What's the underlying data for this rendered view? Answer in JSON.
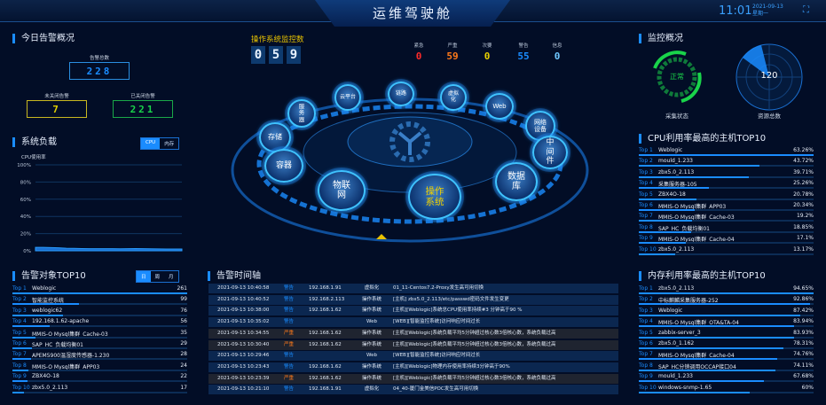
{
  "header": {
    "title": "运维驾驶舱",
    "time": "11:01",
    "date": "2021-09-13",
    "weekday": "星期一",
    "fullscreen_icon": "fullscreen-icon"
  },
  "today_alarm": {
    "title": "今日告警概况",
    "total_label": "告警总数",
    "total": "228",
    "open_label": "未关闭告警",
    "open": "7",
    "closed_label": "已关闭告警",
    "closed": "221",
    "colors": {
      "total": "#1a8cff",
      "open": "#e0d000",
      "closed": "#19d34a"
    }
  },
  "system_load": {
    "title": "系统负载",
    "tabs": [
      "CPU",
      "内存"
    ],
    "active_tab": "CPU",
    "ylabel": "CPU使用率",
    "yticks": [
      "100%",
      "80%",
      "60%",
      "40%",
      "20%",
      "0%"
    ]
  },
  "chart_data": {
    "type": "area",
    "ylabel": "CPU使用率",
    "ylim": [
      0,
      100
    ],
    "grid": true,
    "values": [
      4,
      4,
      3.8,
      3.5,
      3,
      2.8,
      2.6,
      2.5,
      2.5,
      2.4,
      2.4,
      2.3,
      2.5,
      2.6,
      2.4,
      2.3,
      2.2,
      2.1,
      2,
      2
    ]
  },
  "alarm_top": {
    "title": "告警对象TOP10",
    "tabs": [
      "日",
      "周",
      "月"
    ],
    "active_tab": "日",
    "items": [
      {
        "rank": "Top 1",
        "name": "Weblogic",
        "value": "261"
      },
      {
        "rank": "Top 2",
        "name": "智能监控系统",
        "value": "99"
      },
      {
        "rank": "Top 3",
        "name": "weblogic62",
        "value": "76"
      },
      {
        "rank": "Top 4",
        "name": "192.168.1.62-apache",
        "value": "56"
      },
      {
        "rank": "Top 5",
        "name": "MMIS-O Mysql集群_Cache-03",
        "value": "35"
      },
      {
        "rank": "Top 6",
        "name": "SAP_HC_负载均衡01",
        "value": "29"
      },
      {
        "rank": "Top 7",
        "name": "APEM5900温湿度传感器-1.230",
        "value": "28"
      },
      {
        "rank": "Top 8",
        "name": "MMIS-O Mysql集群_APP03",
        "value": "24"
      },
      {
        "rank": "Top 9",
        "name": "ZBX4O-18",
        "value": "22"
      },
      {
        "rank": "Top 10",
        "name": "zbx5.0_2.113",
        "value": "17"
      }
    ]
  },
  "os_monitor": {
    "title": "操作系统监控数",
    "digits": [
      "0",
      "5",
      "9"
    ],
    "severity": [
      {
        "label": "紧急",
        "value": "0",
        "color": "#ff2a2a"
      },
      {
        "label": "严重",
        "value": "59",
        "color": "#ff7a1a"
      },
      {
        "label": "次要",
        "value": "0",
        "color": "#e8d000"
      },
      {
        "label": "警告",
        "value": "55",
        "color": "#1a8cff"
      },
      {
        "label": "信息",
        "value": "0",
        "color": "#6ec6ff"
      }
    ]
  },
  "hub": {
    "active": "操作系统",
    "nodes": [
      "云平台",
      "链路",
      "虚拟化",
      "Web",
      "服务器",
      "网络设备",
      "存储",
      "中间件",
      "容器",
      "数据库",
      "物联网",
      "操作系统"
    ]
  },
  "timeline": {
    "title": "告警时间轴",
    "rows": [
      {
        "time": "2021-09-13 10:40:58",
        "level": "警告",
        "ip": "192.168.1.91",
        "type": "虚拟化",
        "msg": "01_11-Centos7.2-Proxy发生高可用切换"
      },
      {
        "time": "2021-09-13 10:40:52",
        "level": "警告",
        "ip": "192.168.2.113",
        "type": "操作系统",
        "msg": "[主机] zbx5.0_2.113/etc/passwd密码文件发生变更"
      },
      {
        "time": "2021-09-13 10:38:00",
        "level": "警告",
        "ip": "192.168.1.62",
        "type": "操作系统",
        "msg": "[主机][Weblogic]系统总CPU使用率持续#3 分钟高于90 %"
      },
      {
        "time": "2021-09-13 10:35:02",
        "level": "警告",
        "ip": "",
        "type": "Web",
        "msg": "[WEB][智能监控系统]访问响应时间过长"
      },
      {
        "time": "2021-09-13 10:34:55",
        "level": "严重",
        "ip": "192.168.1.62",
        "type": "操作系统",
        "msg": "[主机][Weblogic]系统负载平均5分钟超过核心数3倍核心数，系统负载过高"
      },
      {
        "time": "2021-09-13 10:30:40",
        "level": "严重",
        "ip": "192.168.1.62",
        "type": "操作系统",
        "msg": "[主机][Weblogic]系统负载平均5分钟超过核心数3倍核心数，系统负载过高"
      },
      {
        "time": "2021-09-13 10:29:46",
        "level": "警告",
        "ip": "",
        "type": "Web",
        "msg": "[WEB][智能监控系统]访问响应时间过长"
      },
      {
        "time": "2021-09-13 10:23:43",
        "level": "警告",
        "ip": "192.168.1.62",
        "type": "操作系统",
        "msg": "[主机][Weblogic]物理内存使用率持续3分钟高于90%"
      },
      {
        "time": "2021-09-13 10:23:39",
        "level": "严重",
        "ip": "192.168.1.62",
        "type": "操作系统",
        "msg": "[主机][Weblogic]系统负载平均5分钟超过核心数3倍核心数，系统负载过高"
      },
      {
        "time": "2021-09-13 10:21:10",
        "level": "警告",
        "ip": "192.168.1.91",
        "type": "虚拟化",
        "msg": "04_40-厦门金美信POC发生高可用切换"
      }
    ]
  },
  "monitor": {
    "title": "监控概况",
    "status": "正常",
    "status_label": "采集状态",
    "resources": "120",
    "resources_label": "资源总数"
  },
  "cpu_top": {
    "title": "CPU利用率最高的主机TOP10",
    "items": [
      {
        "rank": "Top 1",
        "name": "Weblogic",
        "value": "63.26%"
      },
      {
        "rank": "Top 2",
        "name": "mould_1.233",
        "value": "43.72%"
      },
      {
        "rank": "Top 3",
        "name": "zbx5.0_2.113",
        "value": "39.71%"
      },
      {
        "rank": "Top 4",
        "name": "采集服务器-105",
        "value": "25.26%"
      },
      {
        "rank": "Top 5",
        "name": "ZBX4O-18",
        "value": "20.78%"
      },
      {
        "rank": "Top 6",
        "name": "MMIS-O Mysql集群_APP03",
        "value": "20.34%"
      },
      {
        "rank": "Top 7",
        "name": "MMIS-O Mysql集群_Cache-03",
        "value": "19.2%"
      },
      {
        "rank": "Top 8",
        "name": "SAP_HC_负载均衡01",
        "value": "18.85%"
      },
      {
        "rank": "Top 9",
        "name": "MMIS-O Mysql集群_Cache-04",
        "value": "17.1%"
      },
      {
        "rank": "Top 10",
        "name": "zbx5.0_2.113",
        "value": "13.17%"
      }
    ]
  },
  "mem_top": {
    "title": "内存利用率最高的主机TOP10",
    "items": [
      {
        "rank": "Top 1",
        "name": "zbx5.0_2.113",
        "value": "94.65%"
      },
      {
        "rank": "Top 2",
        "name": "中标麒麟采集服务器-252",
        "value": "92.86%"
      },
      {
        "rank": "Top 3",
        "name": "Weblogic",
        "value": "87.42%"
      },
      {
        "rank": "Top 4",
        "name": "MMIS-O Mysql集群_OTA&TA-04",
        "value": "83.94%"
      },
      {
        "rank": "Top 5",
        "name": "zabbix-server_3",
        "value": "83.93%"
      },
      {
        "rank": "Top 6",
        "name": "zbx5.0_1.162",
        "value": "78.31%"
      },
      {
        "rank": "Top 7",
        "name": "MMIS-O Mysql集群_Cache-04",
        "value": "74.76%"
      },
      {
        "rank": "Top 8",
        "name": "SAP_HC分销调用OCCAP接口04",
        "value": "74.11%"
      },
      {
        "rank": "Top 9",
        "name": "mould_1.233",
        "value": "67.68%"
      },
      {
        "rank": "Top 10",
        "name": "windows-snmp-1.65",
        "value": "60%"
      }
    ]
  }
}
